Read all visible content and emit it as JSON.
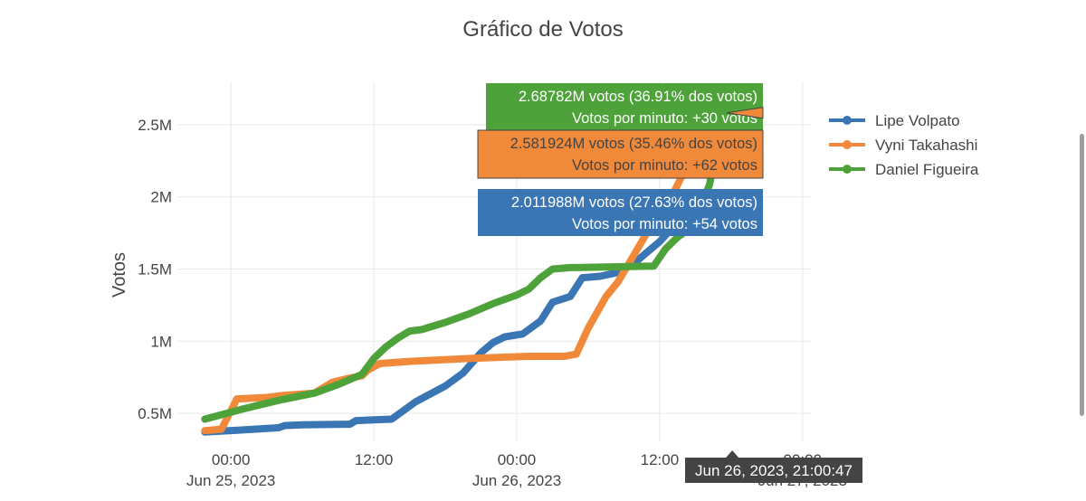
{
  "chart_data": {
    "type": "line",
    "title": "Gráfico de Votos",
    "ylabel": "Votos",
    "xlabel": "",
    "x_ticks": [
      {
        "t": 0,
        "line1": "00:00",
        "line2": "Jun 25, 2023"
      },
      {
        "t": 12,
        "line1": "12:00",
        "line2": ""
      },
      {
        "t": 24,
        "line1": "00:00",
        "line2": "Jun 26, 2023"
      },
      {
        "t": 36,
        "line1": "12:00",
        "line2": ""
      },
      {
        "t": 48,
        "line1": "00:00",
        "line2": "Jun 27, 2023"
      }
    ],
    "y_ticks": [
      {
        "v": 500000,
        "label": "0.5M"
      },
      {
        "v": 1000000,
        "label": "1M"
      },
      {
        "v": 1500000,
        "label": "1.5M"
      },
      {
        "v": 2000000,
        "label": "2M"
      },
      {
        "v": 2500000,
        "label": "2.5M"
      }
    ],
    "xlim": [
      -4.5,
      48.7
    ],
    "ylim": [
      300000,
      2800000
    ],
    "grid": true,
    "legend_position": "top-right",
    "series": [
      {
        "name": "Lipe Volpato",
        "color": "#3a75b4",
        "points": [
          [
            -2.2,
            370000
          ],
          [
            1,
            385000
          ],
          [
            4,
            400000
          ],
          [
            4.5,
            415000
          ],
          [
            6,
            420000
          ],
          [
            10,
            425000
          ],
          [
            10.5,
            450000
          ],
          [
            12,
            455000
          ],
          [
            13.5,
            460000
          ],
          [
            14,
            490000
          ],
          [
            15.5,
            580000
          ],
          [
            18,
            690000
          ],
          [
            19.5,
            780000
          ],
          [
            21,
            920000
          ],
          [
            22,
            990000
          ],
          [
            23,
            1030000
          ],
          [
            24.5,
            1050000
          ],
          [
            26,
            1140000
          ],
          [
            27,
            1270000
          ],
          [
            28.5,
            1310000
          ],
          [
            29.5,
            1440000
          ],
          [
            31,
            1450000
          ],
          [
            32.7,
            1480000
          ],
          [
            34,
            1550000
          ],
          [
            35,
            1620000
          ],
          [
            36,
            1690000
          ],
          [
            37,
            1780000
          ],
          [
            38.5,
            1820000
          ],
          [
            39,
            1870000
          ],
          [
            40,
            1930000
          ],
          [
            41.1,
            1960000
          ],
          [
            42.1,
            2011988
          ]
        ]
      },
      {
        "name": "Vyni Takahashi",
        "color": "#f08a3a",
        "points": [
          [
            -2.2,
            380000
          ],
          [
            -0.8,
            390000
          ],
          [
            0.5,
            600000
          ],
          [
            3,
            610000
          ],
          [
            4.5,
            625000
          ],
          [
            7,
            640000
          ],
          [
            8.5,
            715000
          ],
          [
            10,
            745000
          ],
          [
            11,
            760000
          ],
          [
            11.5,
            800000
          ],
          [
            12.5,
            845000
          ],
          [
            15,
            860000
          ],
          [
            20,
            880000
          ],
          [
            25,
            895000
          ],
          [
            28,
            895000
          ],
          [
            29,
            910000
          ],
          [
            30,
            1090000
          ],
          [
            31.5,
            1310000
          ],
          [
            32.5,
            1410000
          ],
          [
            33.5,
            1550000
          ],
          [
            35,
            1760000
          ],
          [
            36,
            1870000
          ],
          [
            37,
            2000000
          ],
          [
            38.5,
            2250000
          ],
          [
            39.5,
            2390000
          ],
          [
            41.1,
            2560000
          ],
          [
            42.1,
            2581924
          ]
        ]
      },
      {
        "name": "Daniel Figueira",
        "color": "#4ea23a",
        "points": [
          [
            -2.2,
            460000
          ],
          [
            1,
            530000
          ],
          [
            4,
            590000
          ],
          [
            7,
            640000
          ],
          [
            9,
            700000
          ],
          [
            11,
            770000
          ],
          [
            12,
            880000
          ],
          [
            12.5,
            920000
          ],
          [
            13,
            960000
          ],
          [
            14,
            1020000
          ],
          [
            15,
            1070000
          ],
          [
            16,
            1080000
          ],
          [
            18,
            1130000
          ],
          [
            20,
            1190000
          ],
          [
            22,
            1260000
          ],
          [
            24,
            1320000
          ],
          [
            25,
            1360000
          ],
          [
            26,
            1440000
          ],
          [
            27,
            1500000
          ],
          [
            28.5,
            1510000
          ],
          [
            32,
            1515000
          ],
          [
            35.5,
            1520000
          ],
          [
            36.5,
            1640000
          ],
          [
            37.5,
            1720000
          ],
          [
            38.5,
            1780000
          ],
          [
            39.3,
            1880000
          ],
          [
            40.2,
            2090000
          ],
          [
            40.7,
            2300000
          ],
          [
            41.1,
            2600000
          ],
          [
            42.1,
            2687820
          ]
        ]
      }
    ],
    "hover_labels": [
      {
        "series": "Daniel Figueira",
        "line1": "2.68782M votos (36.91% dos votos)",
        "line2": "Votos por minuto: +30 votos",
        "color": "#4ea23a"
      },
      {
        "series": "Vyni Takahashi",
        "line1": "2.581924M votos (35.46% dos votos)",
        "line2": "Votos por minuto: +62 votos",
        "color": "#f08a3a"
      },
      {
        "series": "Lipe Volpato",
        "line1": "2.011988M votos (27.63% dos votos)",
        "line2": "Votos por minuto: +54 votos",
        "color": "#3a75b4"
      }
    ],
    "x_hover_label": "Jun 26, 2023, 21:00:47"
  }
}
